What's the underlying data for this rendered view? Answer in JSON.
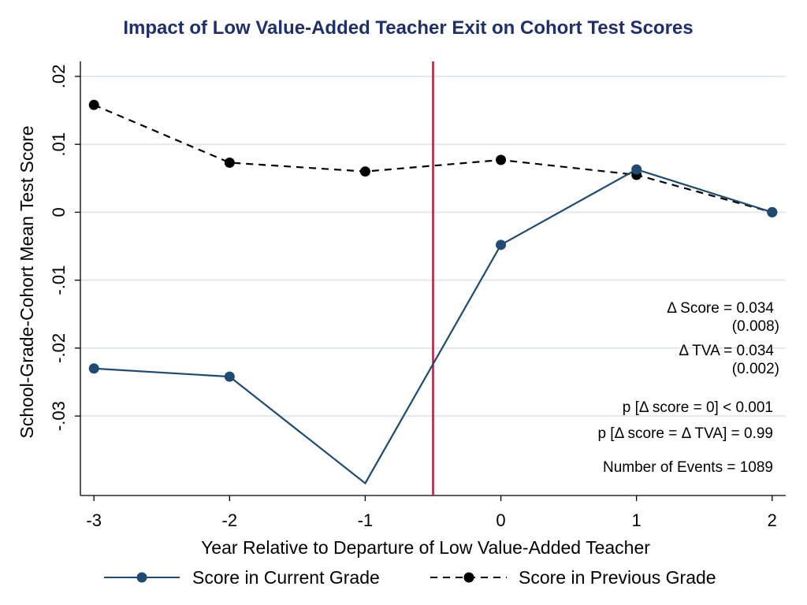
{
  "chart_data": {
    "type": "line",
    "title": "Impact of Low Value-Added Teacher Exit on Cohort Test Scores",
    "xlabel": "Year Relative to Departure of Low Value-Added Teacher",
    "ylabel": "School-Grade-Cohort Mean Test Score",
    "x": [
      -3,
      -2,
      -1,
      0,
      1,
      2
    ],
    "x_ticks": [
      "-3",
      "-2",
      "-1",
      "0",
      "1",
      "2"
    ],
    "y_ticks": [
      ".02",
      ".01",
      "0",
      "-.01",
      "-.02",
      "-.03"
    ],
    "y_tick_values": [
      0.02,
      0.01,
      0,
      -0.01,
      -0.02,
      -0.03
    ],
    "xlim": [
      -3.1,
      2.1
    ],
    "ylim": [
      -0.0417,
      0.0222
    ],
    "grid": true,
    "legend_placement": "bottom",
    "series": [
      {
        "name": "Score in Current Grade",
        "values": [
          -0.023,
          -0.0242,
          -0.0399,
          -0.0048,
          0.0063,
          0.0
        ],
        "color": "#1f4a72",
        "style": "solid"
      },
      {
        "name": "Score in Previous Grade",
        "values": [
          0.0158,
          0.0073,
          0.006,
          0.0077,
          0.0055,
          0.0
        ],
        "color": "#000000",
        "style": "dashed"
      }
    ],
    "reference_line": {
      "x": -0.5,
      "color": "#c0163a"
    },
    "annotations": [
      "Δ Score = 0.034",
      "(0.008)",
      "Δ TVA = 0.034",
      "(0.002)",
      "p [Δ score = 0] < 0.001",
      "p [Δ score = Δ TVA] = 0.99",
      "Number of Events = 1089"
    ]
  }
}
